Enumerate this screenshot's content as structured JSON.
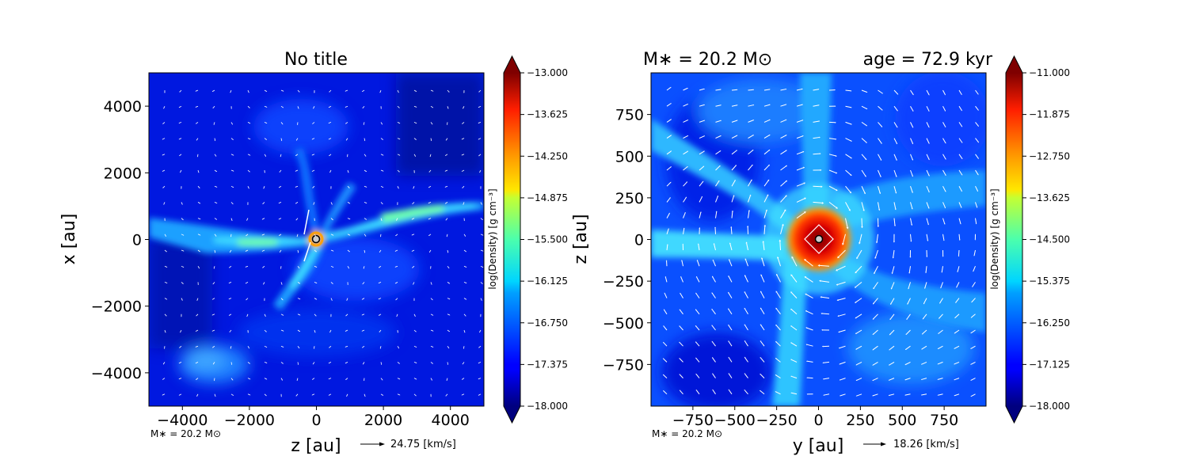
{
  "chart_data": [
    {
      "type": "heatmap",
      "title": "No title",
      "xlabel": "z [au]",
      "ylabel": "x [au]",
      "xlim": [
        -5000,
        5000
      ],
      "ylim": [
        -5000,
        5000
      ],
      "xticks": [
        -4000,
        -2000,
        0,
        2000,
        4000
      ],
      "yticks": [
        -4000,
        -2000,
        0,
        2000,
        4000
      ],
      "xtick_labels": [
        "−4000",
        "−2000",
        "0",
        "2000",
        "4000"
      ],
      "ytick_labels": [
        "−4000",
        "−2000",
        "0",
        "2000",
        "4000"
      ],
      "colormap": "jet",
      "colorbar": {
        "label": "log(Density) [g cm⁻³]",
        "range": [
          -18.0,
          -13.0
        ],
        "ticks": [
          -13.0,
          -13.625,
          -14.25,
          -14.875,
          -15.5,
          -16.125,
          -16.75,
          -17.375,
          -18.0
        ],
        "tick_labels": [
          "−13.000",
          "−13.625",
          "−14.250",
          "−14.875",
          "−15.500",
          "−16.125",
          "−16.750",
          "−17.375",
          "−18.000"
        ]
      },
      "annotation_mass": "M∗ = 20.2 M⊙",
      "velocity_key": "24.75 [km/s]",
      "sink_position": [
        0,
        0
      ]
    },
    {
      "type": "heatmap",
      "title_left": "M∗ = 20.2 M⊙",
      "title_right": "age = 72.9 kyr",
      "xlabel": "y [au]",
      "ylabel": "z [au]",
      "xlim": [
        -1000,
        1000
      ],
      "ylim": [
        -1000,
        1000
      ],
      "xticks": [
        -750,
        -500,
        -250,
        0,
        250,
        500,
        750
      ],
      "yticks": [
        -750,
        -500,
        -250,
        0,
        250,
        500,
        750
      ],
      "xtick_labels": [
        "−750",
        "−500",
        "−250",
        "0",
        "250",
        "500",
        "750"
      ],
      "ytick_labels": [
        "−750",
        "−500",
        "−250",
        "0",
        "250",
        "500",
        "750"
      ],
      "colormap": "jet",
      "colorbar": {
        "label": "log(Density) [g cm⁻³]",
        "range": [
          -18.0,
          -11.0
        ],
        "ticks": [
          -11.0,
          -11.875,
          -12.75,
          -13.625,
          -14.5,
          -15.375,
          -16.25,
          -17.125,
          -18.0
        ],
        "tick_labels": [
          "−11.000",
          "−11.875",
          "−12.750",
          "−13.625",
          "−14.500",
          "−15.375",
          "−16.250",
          "−17.125",
          "−18.000"
        ]
      },
      "annotation_mass": "M∗ = 20.2 M⊙",
      "velocity_key": "18.26 [km/s]",
      "sink_position": [
        0,
        0
      ]
    }
  ]
}
